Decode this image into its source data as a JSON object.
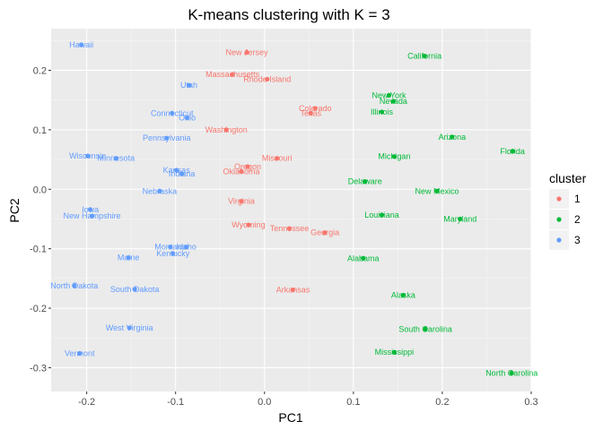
{
  "chart_data": {
    "type": "scatter",
    "title": "K-means clustering with K = 3",
    "xlabel": "PC1",
    "ylabel": "PC2",
    "xlim": [
      -0.24,
      0.3
    ],
    "ylim": [
      -0.34,
      0.27
    ],
    "xticks": [
      -0.2,
      -0.1,
      0.0,
      0.1,
      0.2,
      0.3
    ],
    "xtick_labels": [
      "-0.2",
      "-0.1",
      "0.0",
      "0.1",
      "0.2",
      "0.3"
    ],
    "yticks": [
      -0.3,
      -0.2,
      -0.1,
      0.0,
      0.1,
      0.2
    ],
    "ytick_labels": [
      "-0.3",
      "-0.2",
      "-0.1",
      "0.0",
      "0.1",
      "0.2"
    ],
    "grid": true,
    "legend": {
      "title": "cluster",
      "position": "right",
      "entries": [
        {
          "label": "1",
          "color": "#F8766D"
        },
        {
          "label": "2",
          "color": "#00BA38"
        },
        {
          "label": "3",
          "color": "#619CFF"
        }
      ]
    },
    "colors": {
      "1": "#F8766D",
      "2": "#00BA38",
      "3": "#619CFF"
    },
    "points": [
      {
        "label": "Hawaii",
        "x": -0.206,
        "y": 0.243,
        "cluster": "3"
      },
      {
        "label": "Utah",
        "x": -0.085,
        "y": 0.175,
        "cluster": "3"
      },
      {
        "label": "Connecticut",
        "x": -0.104,
        "y": 0.128,
        "cluster": "3"
      },
      {
        "label": "Ohio",
        "x": -0.087,
        "y": 0.12,
        "cluster": "3"
      },
      {
        "label": "Pennsylvania",
        "x": -0.11,
        "y": 0.086,
        "cluster": "3"
      },
      {
        "label": "Wisconsin",
        "x": -0.199,
        "y": 0.056,
        "cluster": "3"
      },
      {
        "label": "Minnesota",
        "x": -0.167,
        "y": 0.052,
        "cluster": "3"
      },
      {
        "label": "Kansas",
        "x": -0.099,
        "y": 0.032,
        "cluster": "3"
      },
      {
        "label": "Indiana",
        "x": -0.093,
        "y": 0.026,
        "cluster": "3"
      },
      {
        "label": "Nebraska",
        "x": -0.118,
        "y": -0.003,
        "cluster": "3"
      },
      {
        "label": "Iowa",
        "x": -0.196,
        "y": -0.034,
        "cluster": "3"
      },
      {
        "label": "New Hampshire",
        "x": -0.194,
        "y": -0.045,
        "cluster": "3"
      },
      {
        "label": "Montana",
        "x": -0.106,
        "y": -0.097,
        "cluster": "3"
      },
      {
        "label": "Idaho",
        "x": -0.088,
        "y": -0.097,
        "cluster": "3"
      },
      {
        "label": "Kentucky",
        "x": -0.103,
        "y": -0.108,
        "cluster": "3"
      },
      {
        "label": "Maine",
        "x": -0.153,
        "y": -0.115,
        "cluster": "3"
      },
      {
        "label": "North Dakota",
        "x": -0.214,
        "y": -0.162,
        "cluster": "3"
      },
      {
        "label": "South Dakota",
        "x": -0.146,
        "y": -0.168,
        "cluster": "3"
      },
      {
        "label": "West Virginia",
        "x": -0.152,
        "y": -0.233,
        "cluster": "3"
      },
      {
        "label": "Vermont",
        "x": -0.208,
        "y": -0.276,
        "cluster": "3"
      },
      {
        "label": "New Jersey",
        "x": -0.02,
        "y": 0.23,
        "cluster": "1"
      },
      {
        "label": "Massachusetts",
        "x": -0.036,
        "y": 0.193,
        "cluster": "1"
      },
      {
        "label": "Rhode Island",
        "x": 0.003,
        "y": 0.185,
        "cluster": "1"
      },
      {
        "label": "Colorado",
        "x": 0.057,
        "y": 0.136,
        "cluster": "1"
      },
      {
        "label": "Texas",
        "x": 0.052,
        "y": 0.128,
        "cluster": "1"
      },
      {
        "label": "Washington",
        "x": -0.043,
        "y": 0.1,
        "cluster": "1"
      },
      {
        "label": "Missouri",
        "x": 0.014,
        "y": 0.052,
        "cluster": "1"
      },
      {
        "label": "Oregon",
        "x": -0.019,
        "y": 0.038,
        "cluster": "1"
      },
      {
        "label": "Oklahoma",
        "x": -0.026,
        "y": 0.03,
        "cluster": "1"
      },
      {
        "label": "Virginia",
        "x": -0.026,
        "y": -0.02,
        "cluster": "1"
      },
      {
        "label": "Wyoming",
        "x": -0.018,
        "y": -0.06,
        "cluster": "1"
      },
      {
        "label": "Tennessee",
        "x": 0.028,
        "y": -0.066,
        "cluster": "1"
      },
      {
        "label": "Georgia",
        "x": 0.068,
        "y": -0.073,
        "cluster": "1"
      },
      {
        "label": "Arkansas",
        "x": 0.032,
        "y": -0.169,
        "cluster": "1"
      },
      {
        "label": "California",
        "x": 0.18,
        "y": 0.224,
        "cluster": "2"
      },
      {
        "label": "New York",
        "x": 0.14,
        "y": 0.158,
        "cluster": "2"
      },
      {
        "label": "Nevada",
        "x": 0.145,
        "y": 0.148,
        "cluster": "2"
      },
      {
        "label": "Illinois",
        "x": 0.132,
        "y": 0.13,
        "cluster": "2"
      },
      {
        "label": "Arizona",
        "x": 0.211,
        "y": 0.088,
        "cluster": "2"
      },
      {
        "label": "Florida",
        "x": 0.279,
        "y": 0.064,
        "cluster": "2"
      },
      {
        "label": "Michigan",
        "x": 0.146,
        "y": 0.055,
        "cluster": "2"
      },
      {
        "label": "Delaware",
        "x": 0.113,
        "y": 0.013,
        "cluster": "2"
      },
      {
        "label": "New Mexico",
        "x": 0.194,
        "y": -0.003,
        "cluster": "2"
      },
      {
        "label": "Louisiana",
        "x": 0.132,
        "y": -0.043,
        "cluster": "2"
      },
      {
        "label": "Maryland",
        "x": 0.22,
        "y": -0.05,
        "cluster": "2"
      },
      {
        "label": "Alabama",
        "x": 0.111,
        "y": -0.116,
        "cluster": "2"
      },
      {
        "label": "Alaska",
        "x": 0.156,
        "y": -0.178,
        "cluster": "2"
      },
      {
        "label": "South Carolina",
        "x": 0.181,
        "y": -0.235,
        "cluster": "2"
      },
      {
        "label": "Mississippi",
        "x": 0.146,
        "y": -0.274,
        "cluster": "2"
      },
      {
        "label": "North Carolina",
        "x": 0.278,
        "y": -0.309,
        "cluster": "2"
      }
    ]
  }
}
